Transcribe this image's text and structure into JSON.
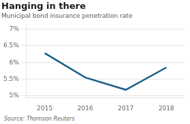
{
  "chart_data": {
    "type": "line",
    "title": "Hanging in there",
    "subtitle": "Municipal bond insurance penetration rate",
    "source": "Source: Thomson Reuters",
    "x": [
      2015,
      2016,
      2017,
      2018
    ],
    "values": [
      0.0628,
      0.0555,
      0.0518,
      0.0585
    ],
    "color": "#1a5f8a",
    "xlim": [
      2014.55,
      2018.45
    ],
    "ylim": [
      0.0495,
      0.0715
    ],
    "xticks": [
      2015,
      2016,
      2017,
      2018
    ],
    "yticks": [
      {
        "value": 0.05,
        "label": "5%"
      },
      {
        "value": 0.055,
        "label": "5.5%"
      },
      {
        "value": 0.06,
        "label": "6%"
      },
      {
        "value": 0.065,
        "label": "6.5%"
      },
      {
        "value": 0.07,
        "label": "7%"
      }
    ],
    "grid": "y"
  }
}
